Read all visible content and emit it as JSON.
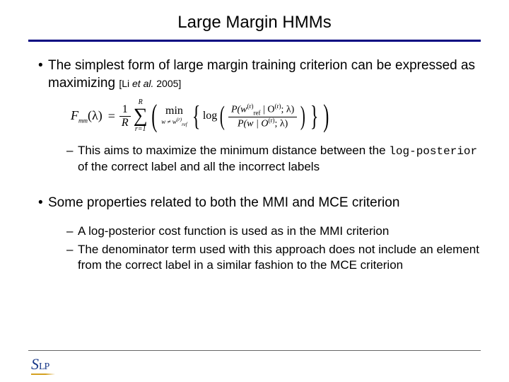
{
  "title": "Large Margin HMMs",
  "bullets": {
    "b1": {
      "text_a": "The simplest form of large margin training criterion can be expressed as maximizing ",
      "cite_open": "[Li ",
      "cite_ital": "et al.",
      "cite_close": " 2005]"
    },
    "formula": {
      "lhs": "F",
      "lhs_sub": "mm",
      "lambda": "(λ)",
      "eq": "=",
      "one": "1",
      "R": "R",
      "sum_top": "R",
      "sum_bot": "r=1",
      "min": "min",
      "min_sub": "w ≠ w",
      "min_sub_sup": "(r)",
      "min_sub_ref": "ref",
      "log": "log",
      "num_P": "P(w",
      "num_ref": "ref",
      "num_rsup": "(r)",
      "num_mid": " | O",
      "num_r2": "(r)",
      "num_tail": "; λ)",
      "den_P": "P(w | O",
      "den_r": "(r)",
      "den_tail": "; λ)"
    },
    "b1_sub": {
      "text_a": "This aims to maximize the minimum distance between the ",
      "logpost": "log-posterior",
      "text_b": " of the correct label and all the incorrect labels"
    },
    "b2": {
      "text": "Some properties related to both the MMI and MCE criterion"
    },
    "b2_sub1": "A log-posterior cost function is used as in the MMI criterion",
    "b2_sub2": "The denominator term used with this approach does not include an element from the correct label in a similar fashion to the MCE criterion"
  },
  "logo": {
    "s": "S",
    "lp": "LP"
  },
  "colors": {
    "title_rule": "#000080",
    "text": "#000000",
    "logo": "#1a3a8a",
    "logo_underline": "#d4a020"
  },
  "fonts": {
    "body": "Arial",
    "math": "Times New Roman",
    "mono": "Courier New",
    "title_size": 24,
    "body_size": 19,
    "sub_size": 17,
    "cite_size": 14
  }
}
